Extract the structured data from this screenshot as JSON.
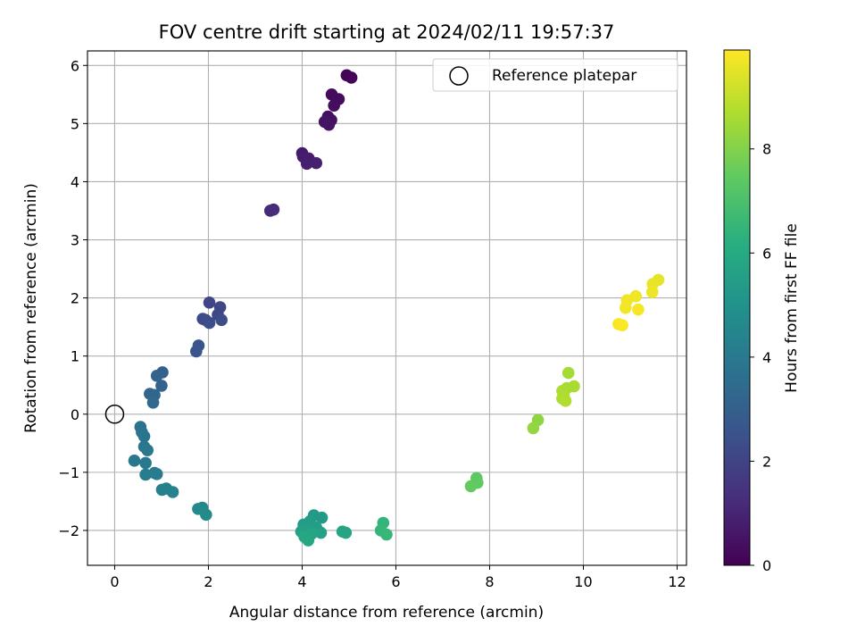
{
  "chart_data": {
    "type": "scatter",
    "title": "FOV centre drift starting at 2024/02/11 19:57:37",
    "xlabel": "Angular distance from reference (arcmin)",
    "ylabel": "Rotation from reference (arcmin)",
    "xlim": [
      -0.58,
      12.2
    ],
    "ylim": [
      -2.6,
      6.25
    ],
    "xticks": [
      0,
      2,
      4,
      6,
      8,
      10,
      12
    ],
    "yticks": [
      -2,
      -1,
      0,
      1,
      2,
      3,
      4,
      5,
      6
    ],
    "grid": true,
    "legend": {
      "placement": "top-right",
      "entries": [
        "Reference platepar"
      ]
    },
    "reference_point": {
      "x": 0,
      "y": 0,
      "marker": "open-circle"
    },
    "colorbar": {
      "label": "Hours from first FF file",
      "range": [
        0,
        9.9
      ],
      "ticks": [
        0,
        2,
        4,
        6,
        8
      ],
      "colormap": "viridis"
    },
    "points": [
      {
        "x": 4.95,
        "y": 5.83,
        "h": 0.1
      },
      {
        "x": 5.05,
        "y": 5.79,
        "h": 0.15
      },
      {
        "x": 4.63,
        "y": 5.5,
        "h": 0.25
      },
      {
        "x": 4.78,
        "y": 5.42,
        "h": 0.3
      },
      {
        "x": 4.68,
        "y": 5.31,
        "h": 0.35
      },
      {
        "x": 4.55,
        "y": 5.12,
        "h": 0.4
      },
      {
        "x": 4.62,
        "y": 5.06,
        "h": 0.45
      },
      {
        "x": 4.48,
        "y": 5.03,
        "h": 0.5
      },
      {
        "x": 4.57,
        "y": 4.98,
        "h": 0.55
      },
      {
        "x": 4.0,
        "y": 4.49,
        "h": 0.7
      },
      {
        "x": 4.02,
        "y": 4.43,
        "h": 0.75
      },
      {
        "x": 4.14,
        "y": 4.4,
        "h": 0.8
      },
      {
        "x": 4.1,
        "y": 4.31,
        "h": 0.85
      },
      {
        "x": 4.3,
        "y": 4.32,
        "h": 0.9
      },
      {
        "x": 3.32,
        "y": 3.5,
        "h": 1.15
      },
      {
        "x": 3.39,
        "y": 3.52,
        "h": 1.2
      },
      {
        "x": 2.02,
        "y": 1.92,
        "h": 2.05
      },
      {
        "x": 2.25,
        "y": 1.84,
        "h": 2.1
      },
      {
        "x": 2.2,
        "y": 1.71,
        "h": 2.15
      },
      {
        "x": 1.88,
        "y": 1.64,
        "h": 2.2
      },
      {
        "x": 1.94,
        "y": 1.62,
        "h": 2.25
      },
      {
        "x": 2.28,
        "y": 1.62,
        "h": 2.3
      },
      {
        "x": 2.02,
        "y": 1.57,
        "h": 2.35
      },
      {
        "x": 1.79,
        "y": 1.18,
        "h": 2.55
      },
      {
        "x": 1.74,
        "y": 1.08,
        "h": 2.6
      },
      {
        "x": 1.02,
        "y": 0.72,
        "h": 3.05
      },
      {
        "x": 0.9,
        "y": 0.66,
        "h": 3.1
      },
      {
        "x": 1.0,
        "y": 0.49,
        "h": 3.15
      },
      {
        "x": 0.75,
        "y": 0.35,
        "h": 3.25
      },
      {
        "x": 0.85,
        "y": 0.33,
        "h": 3.3
      },
      {
        "x": 0.82,
        "y": 0.2,
        "h": 3.35
      },
      {
        "x": 0.55,
        "y": -0.22,
        "h": 3.7
      },
      {
        "x": 0.58,
        "y": -0.31,
        "h": 3.75
      },
      {
        "x": 0.63,
        "y": -0.38,
        "h": 3.8
      },
      {
        "x": 0.63,
        "y": -0.56,
        "h": 3.85
      },
      {
        "x": 0.7,
        "y": -0.62,
        "h": 3.9
      },
      {
        "x": 0.42,
        "y": -0.8,
        "h": 3.95
      },
      {
        "x": 0.66,
        "y": -0.84,
        "h": 4.0
      },
      {
        "x": 0.85,
        "y": -1.01,
        "h": 4.05
      },
      {
        "x": 0.9,
        "y": -1.03,
        "h": 4.1
      },
      {
        "x": 0.66,
        "y": -1.04,
        "h": 4.15
      },
      {
        "x": 1.1,
        "y": -1.28,
        "h": 4.25
      },
      {
        "x": 1.01,
        "y": -1.3,
        "h": 4.3
      },
      {
        "x": 1.24,
        "y": -1.34,
        "h": 4.35
      },
      {
        "x": 1.87,
        "y": -1.61,
        "h": 4.6
      },
      {
        "x": 1.78,
        "y": -1.63,
        "h": 4.65
      },
      {
        "x": 1.95,
        "y": -1.73,
        "h": 4.7
      },
      {
        "x": 4.25,
        "y": -1.74,
        "h": 5.3
      },
      {
        "x": 4.42,
        "y": -1.78,
        "h": 5.35
      },
      {
        "x": 4.17,
        "y": -1.84,
        "h": 5.4
      },
      {
        "x": 4.03,
        "y": -1.9,
        "h": 5.45
      },
      {
        "x": 4.3,
        "y": -1.95,
        "h": 5.5
      },
      {
        "x": 4.1,
        "y": -1.97,
        "h": 5.55
      },
      {
        "x": 3.98,
        "y": -2.02,
        "h": 5.6
      },
      {
        "x": 4.4,
        "y": -2.04,
        "h": 5.65
      },
      {
        "x": 4.86,
        "y": -2.02,
        "h": 5.7
      },
      {
        "x": 4.93,
        "y": -2.04,
        "h": 5.75
      },
      {
        "x": 4.2,
        "y": -2.06,
        "h": 5.8
      },
      {
        "x": 4.05,
        "y": -2.11,
        "h": 5.85
      },
      {
        "x": 4.13,
        "y": -2.17,
        "h": 5.9
      },
      {
        "x": 5.73,
        "y": -1.87,
        "h": 6.45
      },
      {
        "x": 5.68,
        "y": -2.0,
        "h": 6.5
      },
      {
        "x": 5.8,
        "y": -2.07,
        "h": 6.55
      },
      {
        "x": 7.72,
        "y": -1.1,
        "h": 7.4
      },
      {
        "x": 7.74,
        "y": -1.18,
        "h": 7.45
      },
      {
        "x": 7.6,
        "y": -1.24,
        "h": 7.5
      },
      {
        "x": 9.03,
        "y": -0.1,
        "h": 8.2
      },
      {
        "x": 8.93,
        "y": -0.24,
        "h": 8.25
      },
      {
        "x": 9.68,
        "y": 0.71,
        "h": 8.55
      },
      {
        "x": 9.65,
        "y": 0.45,
        "h": 8.6
      },
      {
        "x": 9.8,
        "y": 0.48,
        "h": 8.62
      },
      {
        "x": 9.55,
        "y": 0.4,
        "h": 8.65
      },
      {
        "x": 9.58,
        "y": 0.32,
        "h": 8.68
      },
      {
        "x": 9.55,
        "y": 0.27,
        "h": 8.7
      },
      {
        "x": 9.62,
        "y": 0.23,
        "h": 8.72
      },
      {
        "x": 11.6,
        "y": 2.31,
        "h": 9.55
      },
      {
        "x": 11.48,
        "y": 2.24,
        "h": 9.6
      },
      {
        "x": 11.47,
        "y": 2.1,
        "h": 9.65
      },
      {
        "x": 11.12,
        "y": 2.03,
        "h": 9.7
      },
      {
        "x": 10.93,
        "y": 1.96,
        "h": 9.72
      },
      {
        "x": 10.9,
        "y": 1.83,
        "h": 9.75
      },
      {
        "x": 11.17,
        "y": 1.8,
        "h": 9.78
      },
      {
        "x": 10.75,
        "y": 1.55,
        "h": 9.82
      },
      {
        "x": 10.83,
        "y": 1.53,
        "h": 9.85
      }
    ]
  }
}
